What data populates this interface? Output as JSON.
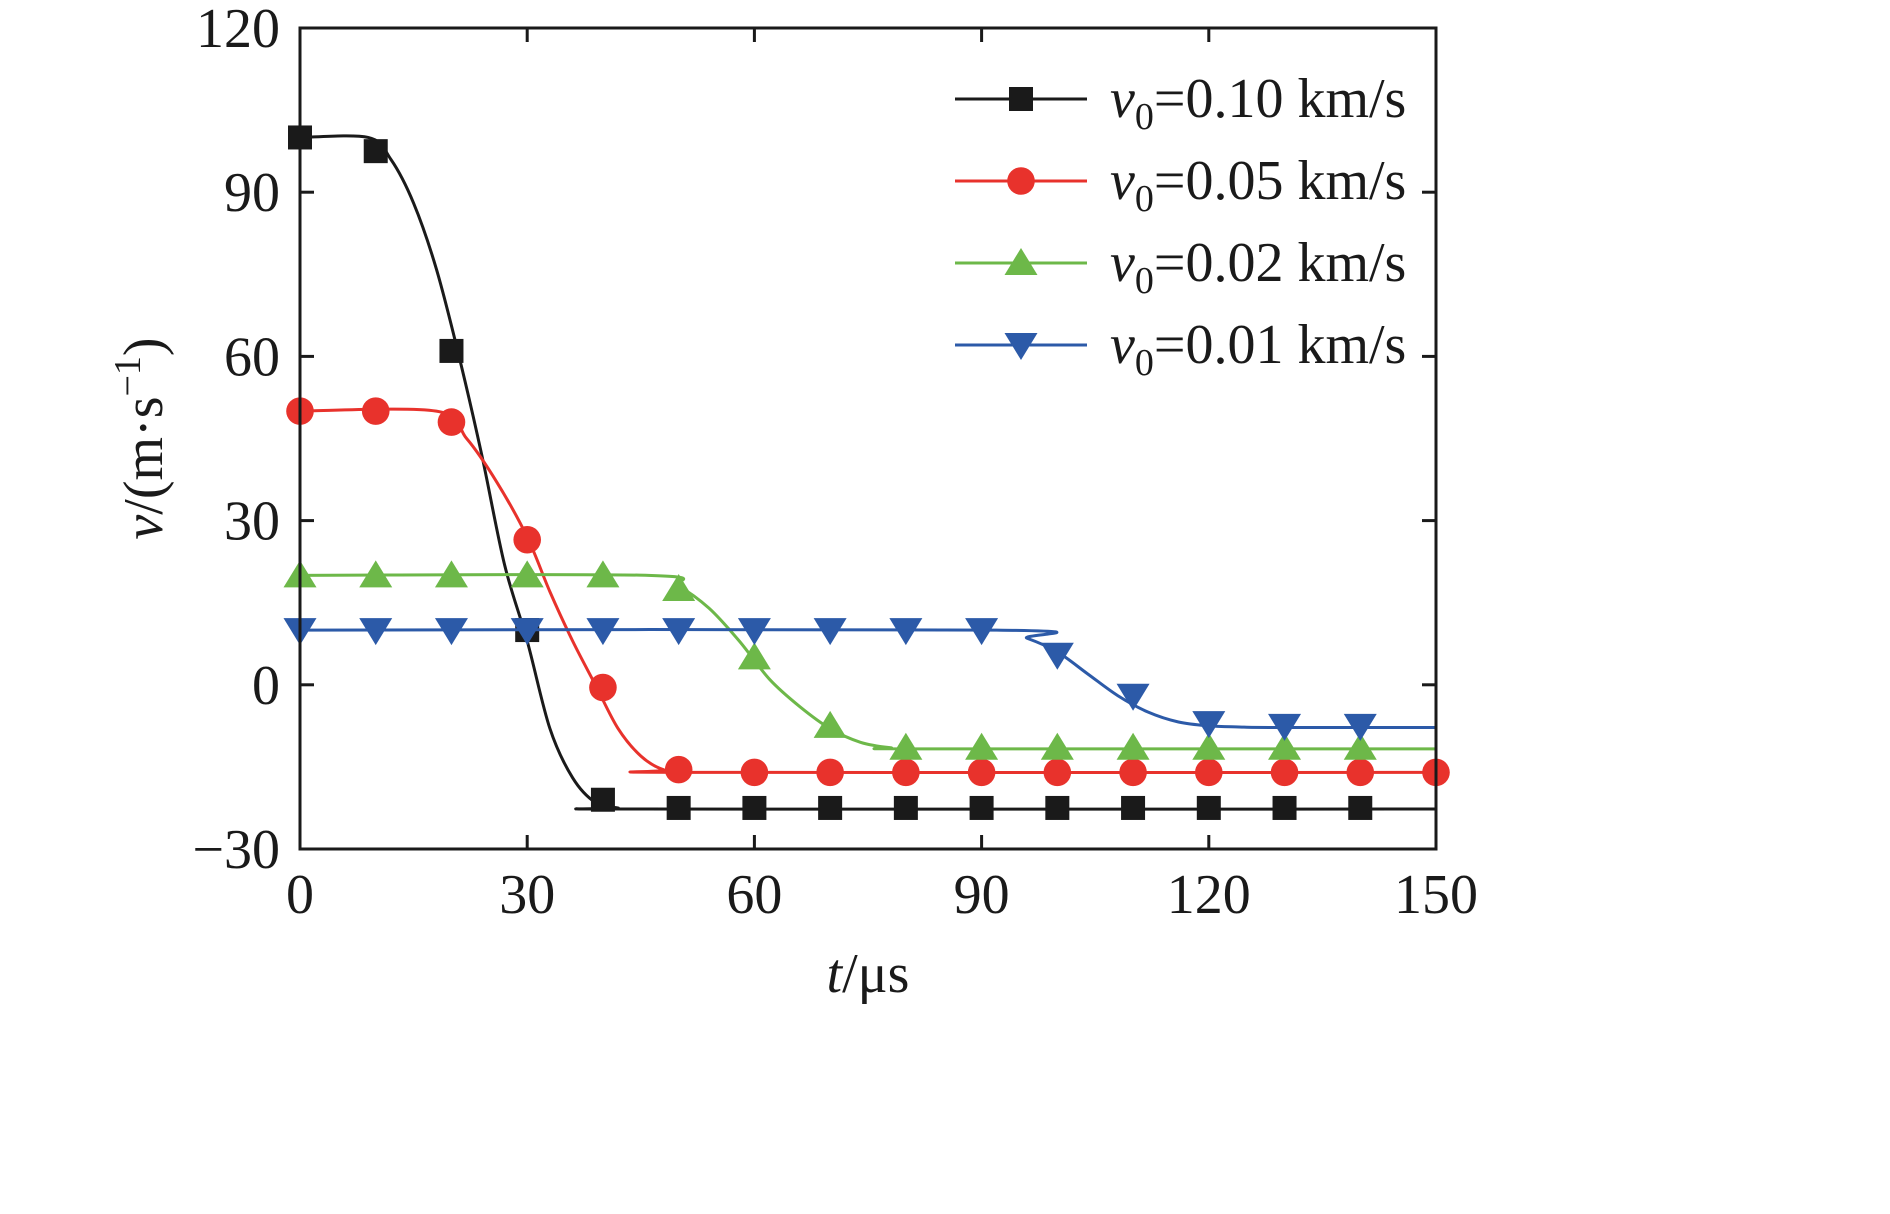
{
  "chart_data": {
    "type": "line",
    "title": "",
    "xlabel": {
      "symbol": "t",
      "unit": "/μs"
    },
    "ylabel": {
      "symbol": "v",
      "unit_prefix": "/(m·s",
      "unit_exp": "−1",
      "unit_suffix": ")"
    },
    "xlim": [
      0,
      150
    ],
    "ylim": [
      -30,
      120
    ],
    "xticks": [
      0,
      30,
      60,
      90,
      120,
      150
    ],
    "yticks": [
      -30,
      0,
      30,
      60,
      90,
      120
    ],
    "xtick_labels": [
      "0",
      "30",
      "60",
      "90",
      "120",
      "150"
    ],
    "ytick_labels": [
      "−30",
      "0",
      "30",
      "60",
      "90",
      "120"
    ],
    "grid": false,
    "legend_position": "top-right",
    "marker_x": [
      0,
      10,
      20,
      30,
      40,
      50,
      60,
      70,
      80,
      90,
      100,
      110,
      120,
      130,
      140,
      150
    ],
    "series": [
      {
        "legend_symbol": "v",
        "legend_sub": "0",
        "legend_value": "=0.10 km/s",
        "color": "#1a1a1a",
        "marker": "square",
        "curve_x": [
          0,
          9,
          12,
          15,
          18,
          21,
          24,
          27,
          30,
          33,
          36,
          39,
          42,
          45,
          150
        ],
        "curve_y": [
          100,
          100,
          96,
          88,
          76,
          60,
          42,
          22,
          8,
          -8,
          -17,
          -21.5,
          -22.5,
          -22.7,
          -22.7
        ],
        "marker_y": [
          100,
          97.5,
          61,
          10,
          -21,
          -22.5,
          -22.5,
          -22.5,
          -22.5,
          -22.5,
          -22.5,
          -22.5,
          -22.5,
          -22.5,
          -22.5,
          null
        ]
      },
      {
        "legend_symbol": "v",
        "legend_sub": "0",
        "legend_value": "=0.05 km/s",
        "color": "#e8322c",
        "marker": "circle",
        "curve_x": [
          0,
          18,
          22,
          26,
          30,
          33,
          36,
          39,
          42,
          45,
          48,
          52,
          150
        ],
        "curve_y": [
          50,
          50,
          45,
          37,
          27,
          17,
          8,
          0,
          -8,
          -13,
          -15.5,
          -16,
          -16
        ],
        "marker_y": [
          50,
          50,
          48,
          26.5,
          -0.5,
          -15.5,
          -16,
          -16,
          -16,
          -16,
          -16,
          -16,
          -16,
          -16,
          -16,
          -16
        ]
      },
      {
        "legend_symbol": "v",
        "legend_sub": "0",
        "legend_value": "=0.02 km/s",
        "color": "#6db849",
        "marker": "triangle-up",
        "curve_x": [
          0,
          46,
          50,
          54,
          58,
          62,
          66,
          70,
          74,
          78,
          82,
          150
        ],
        "curve_y": [
          20,
          20,
          18,
          14,
          8,
          1,
          -4,
          -8,
          -10.5,
          -11.5,
          -11.7,
          -11.7
        ],
        "marker_y": [
          20,
          20,
          20,
          20,
          20,
          17.5,
          5,
          -7.5,
          -11.5,
          -11.5,
          -11.5,
          -11.5,
          -11.5,
          -11.5,
          -11.5,
          null
        ]
      },
      {
        "legend_symbol": "v",
        "legend_sub": "0",
        "legend_value": "=0.01 km/s",
        "color": "#2c5aa8",
        "marker": "triangle-down",
        "curve_x": [
          0,
          92,
          96,
          100,
          104,
          108,
          112,
          116,
          120,
          124,
          128,
          150
        ],
        "curve_y": [
          10,
          10,
          8.5,
          6,
          2,
          -2,
          -5,
          -6.8,
          -7.5,
          -7.7,
          -7.8,
          -7.8
        ],
        "marker_y": [
          10,
          10,
          10,
          10,
          10,
          10,
          10,
          10,
          10,
          10,
          5.5,
          -2,
          -7,
          -7.5,
          -7.5,
          null
        ]
      }
    ]
  }
}
